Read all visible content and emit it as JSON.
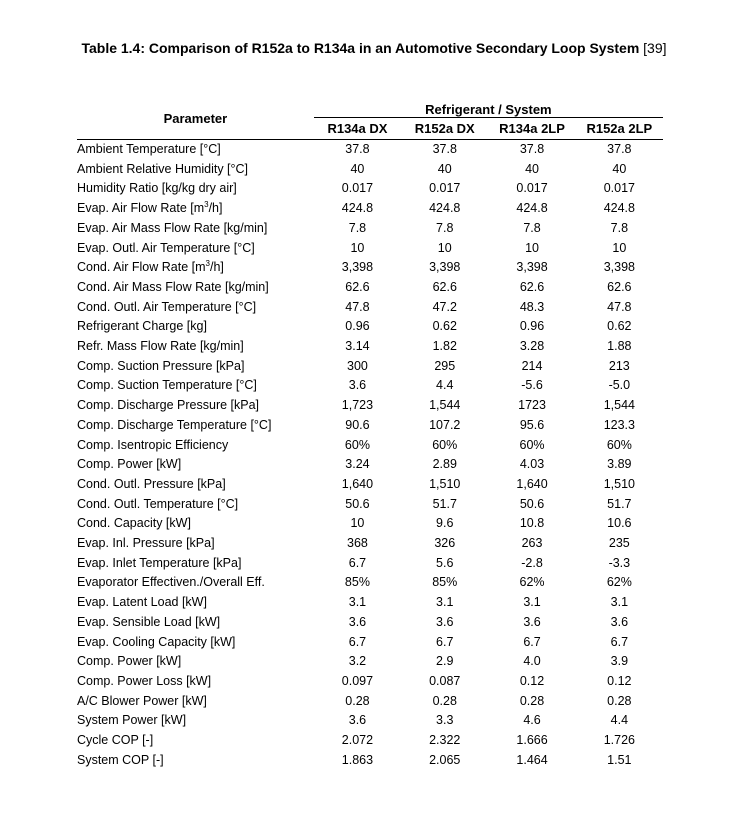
{
  "caption": {
    "label_bold": "Table 1.4: Comparison of R152a to R134a in an Automotive Secondary Loop System",
    "reference": "[39]"
  },
  "table": {
    "param_header": "Parameter",
    "group_header": "Refrigerant / System",
    "columns": [
      "R134a DX",
      "R152a DX",
      "R134a 2LP",
      "R152a 2LP"
    ],
    "rows": [
      {
        "param": "Ambient Temperature [°C]",
        "values": [
          "37.8",
          "37.8",
          "37.8",
          "37.8"
        ]
      },
      {
        "param": "Ambient Relative Humidity [°C]",
        "values": [
          "40",
          "40",
          "40",
          "40"
        ]
      },
      {
        "param": "Humidity Ratio [kg/kg dry air]",
        "values": [
          "0.017",
          "0.017",
          "0.017",
          "0.017"
        ]
      },
      {
        "param": "Evap. Air Flow Rate [m³/h]",
        "values": [
          "424.8",
          "424.8",
          "424.8",
          "424.8"
        ]
      },
      {
        "param": "Evap. Air Mass Flow Rate [kg/min]",
        "values": [
          "7.8",
          "7.8",
          "7.8",
          "7.8"
        ]
      },
      {
        "param": "Evap. Outl. Air Temperature [°C]",
        "values": [
          "10",
          "10",
          "10",
          "10"
        ]
      },
      {
        "param": "Cond. Air Flow Rate [m³/h]",
        "values": [
          "3,398",
          "3,398",
          "3,398",
          "3,398"
        ]
      },
      {
        "param": "Cond. Air Mass Flow Rate [kg/min]",
        "values": [
          "62.6",
          "62.6",
          "62.6",
          "62.6"
        ]
      },
      {
        "param": "Cond. Outl. Air Temperature [°C]",
        "values": [
          "47.8",
          "47.2",
          "48.3",
          "47.8"
        ]
      },
      {
        "param": "Refrigerant Charge [kg]",
        "values": [
          "0.96",
          "0.62",
          "0.96",
          "0.62"
        ]
      },
      {
        "param": "Refr. Mass Flow Rate [kg/min]",
        "values": [
          "3.14",
          "1.82",
          "3.28",
          "1.88"
        ]
      },
      {
        "param": "Comp. Suction Pressure [kPa]",
        "values": [
          "300",
          "295",
          "214",
          "213"
        ]
      },
      {
        "param": "Comp. Suction Temperature [°C]",
        "values": [
          "3.6",
          "4.4",
          "-5.6",
          "-5.0"
        ]
      },
      {
        "param": "Comp. Discharge Pressure [kPa]",
        "values": [
          "1,723",
          "1,544",
          "1723",
          "1,544"
        ]
      },
      {
        "param": "Comp. Discharge Temperature [°C]",
        "values": [
          "90.6",
          "107.2",
          "95.6",
          "123.3"
        ]
      },
      {
        "param": "Comp. Isentropic Efficiency",
        "values": [
          "60%",
          "60%",
          "60%",
          "60%"
        ]
      },
      {
        "param": "Comp. Power [kW]",
        "values": [
          "3.24",
          "2.89",
          "4.03",
          "3.89"
        ]
      },
      {
        "param": "Cond. Outl. Pressure [kPa]",
        "values": [
          "1,640",
          "1,510",
          "1,640",
          "1,510"
        ]
      },
      {
        "param": "Cond. Outl. Temperature [°C]",
        "values": [
          "50.6",
          "51.7",
          "50.6",
          "51.7"
        ]
      },
      {
        "param": "Cond. Capacity [kW]",
        "values": [
          "10",
          "9.6",
          "10.8",
          "10.6"
        ]
      },
      {
        "param": "Evap. Inl. Pressure [kPa]",
        "values": [
          "368",
          "326",
          "263",
          "235"
        ]
      },
      {
        "param": "Evap. Inlet Temperature [kPa]",
        "values": [
          "6.7",
          "5.6",
          "-2.8",
          "-3.3"
        ]
      },
      {
        "param": "Evaporator Effectiven./Overall Eff.",
        "values": [
          "85%",
          "85%",
          "62%",
          "62%"
        ]
      },
      {
        "param": "Evap. Latent Load [kW]",
        "values": [
          "3.1",
          "3.1",
          "3.1",
          "3.1"
        ]
      },
      {
        "param": "Evap. Sensible Load [kW]",
        "values": [
          "3.6",
          "3.6",
          "3.6",
          "3.6"
        ]
      },
      {
        "param": "Evap. Cooling Capacity [kW]",
        "values": [
          "6.7",
          "6.7",
          "6.7",
          "6.7"
        ]
      },
      {
        "param": "Comp. Power [kW]",
        "values": [
          "3.2",
          "2.9",
          "4.0",
          "3.9"
        ]
      },
      {
        "param": "Comp. Power Loss [kW]",
        "values": [
          "0.097",
          "0.087",
          "0.12",
          "0.12"
        ]
      },
      {
        "param": "A/C Blower Power [kW]",
        "values": [
          "0.28",
          "0.28",
          "0.28",
          "0.28"
        ]
      },
      {
        "param": "System Power [kW]",
        "values": [
          "3.6",
          "3.3",
          "4.6",
          "4.4"
        ]
      },
      {
        "param": "Cycle COP [-]",
        "values": [
          "2.072",
          "2.322",
          "1.666",
          "1.726"
        ]
      },
      {
        "param": "System COP [-]",
        "values": [
          "1.863",
          "2.065",
          "1.464",
          "1.51"
        ]
      }
    ]
  }
}
